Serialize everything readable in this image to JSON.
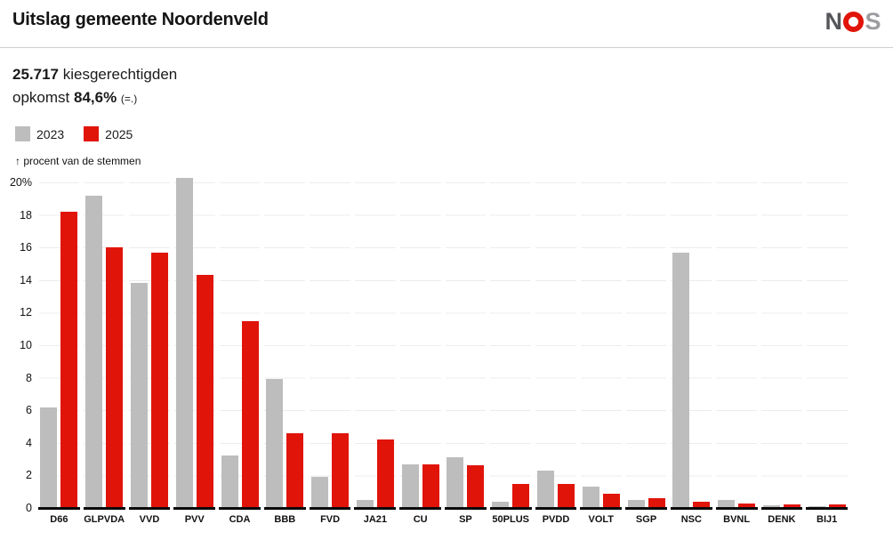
{
  "header": {
    "title": "Uitslag gemeente Noordenveld",
    "logo": {
      "letter_n": "N",
      "letter_s": "S",
      "o_color": "#e1140a",
      "n_color": "#55565a",
      "s_color": "#9d9da1"
    }
  },
  "stats": {
    "electorate_value": "25.717",
    "electorate_label": " kiesgerechtigden",
    "turnout_label": "opkomst ",
    "turnout_value": "84,6%",
    "turnout_change": "(=.)"
  },
  "legend": {
    "items": [
      {
        "label": "2023",
        "color": "#bdbdbd"
      },
      {
        "label": "2025",
        "color": "#e1140a"
      }
    ]
  },
  "chart_data": {
    "type": "bar",
    "axis_note": "↑ procent van de stemmen",
    "categories": [
      "D66",
      "GLPVDA",
      "VVD",
      "PVV",
      "CDA",
      "BBB",
      "FVD",
      "JA21",
      "CU",
      "SP",
      "50PLUS",
      "PVDD",
      "VOLT",
      "SGP",
      "NSC",
      "BVNL",
      "DENK",
      "BIJ1"
    ],
    "series": [
      {
        "name": "2023",
        "color": "#bdbdbd",
        "values": [
          6.2,
          19.2,
          13.8,
          20.3,
          3.2,
          7.9,
          1.9,
          0.5,
          2.7,
          3.1,
          0.4,
          2.3,
          1.3,
          0.5,
          15.7,
          0.5,
          0.15,
          0.1
        ]
      },
      {
        "name": "2025",
        "color": "#e1140a",
        "values": [
          18.2,
          16.0,
          15.7,
          14.3,
          11.5,
          4.6,
          4.6,
          4.2,
          2.7,
          2.6,
          1.5,
          1.5,
          0.9,
          0.6,
          0.4,
          0.25,
          0.2,
          0.2
        ]
      }
    ],
    "ylabel": "procent van de stemmen",
    "xlabel": "",
    "ylim": [
      0,
      20
    ],
    "yticks": [
      0,
      2,
      4,
      6,
      8,
      10,
      12,
      14,
      16,
      18,
      20
    ],
    "ytick_top_label": "20%",
    "grid": true,
    "legend_position": "top-left"
  }
}
